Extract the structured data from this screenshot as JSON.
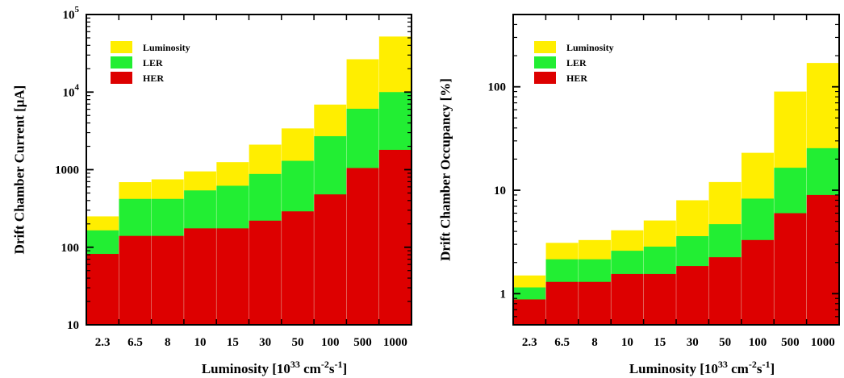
{
  "chart_data": [
    {
      "type": "bar",
      "stacked_overlay": true,
      "yscale": "log",
      "ylim": [
        10,
        100000
      ],
      "ylabel": "Drift Chamber Current [μA]",
      "xlabel": "Luminosity [10^33 cm^-2s^-1]",
      "y_tick_labels": [
        {
          "value": 10,
          "base": "10",
          "exp": ""
        },
        {
          "value": 100,
          "base": "100",
          "exp": ""
        },
        {
          "value": 1000,
          "base": "1000",
          "exp": ""
        },
        {
          "value": 10000,
          "base": "10",
          "exp": "4"
        },
        {
          "value": 100000,
          "base": "10",
          "exp": "5"
        }
      ],
      "categories": [
        "2.3",
        "6.5",
        "8",
        "10",
        "15",
        "30",
        "50",
        "100",
        "500",
        "1000"
      ],
      "series": [
        {
          "name": "Luminosity",
          "color": "#ffee00",
          "values": [
            250,
            690,
            750,
            950,
            1250,
            2100,
            3400,
            6900,
            26500,
            52000
          ]
        },
        {
          "name": "LER",
          "color": "#22ee33",
          "values": [
            165,
            420,
            420,
            540,
            620,
            880,
            1300,
            2700,
            6100,
            10000
          ]
        },
        {
          "name": "HER",
          "color": "#dd0000",
          "values": [
            82,
            140,
            140,
            175,
            175,
            220,
            290,
            480,
            1050,
            1800
          ]
        }
      ],
      "legend_position": "top-left",
      "grid": false
    },
    {
      "type": "bar",
      "stacked_overlay": true,
      "yscale": "log",
      "ylim": [
        0.5,
        500
      ],
      "ylabel": "Drift Chamber Occupancy [%]",
      "xlabel": "Luminosity [10^33 cm^-2s^-1]",
      "y_tick_labels": [
        {
          "value": 1,
          "base": "1",
          "exp": ""
        },
        {
          "value": 10,
          "base": "10",
          "exp": ""
        },
        {
          "value": 100,
          "base": "100",
          "exp": ""
        }
      ],
      "categories": [
        "2.3",
        "6.5",
        "8",
        "10",
        "15",
        "30",
        "50",
        "100",
        "500",
        "1000"
      ],
      "series": [
        {
          "name": "Luminosity",
          "color": "#ffee00",
          "values": [
            1.5,
            3.1,
            3.3,
            4.1,
            5.1,
            8.0,
            12.0,
            23.0,
            90.0,
            170.0
          ]
        },
        {
          "name": "LER",
          "color": "#22ee33",
          "values": [
            1.15,
            2.15,
            2.15,
            2.6,
            2.85,
            3.6,
            4.7,
            8.3,
            16.5,
            25.5
          ]
        },
        {
          "name": "HER",
          "color": "#dd0000",
          "values": [
            0.88,
            1.3,
            1.3,
            1.55,
            1.55,
            1.85,
            2.25,
            3.3,
            6.0,
            9.0
          ]
        }
      ],
      "legend_position": "top-left",
      "grid": false
    }
  ]
}
